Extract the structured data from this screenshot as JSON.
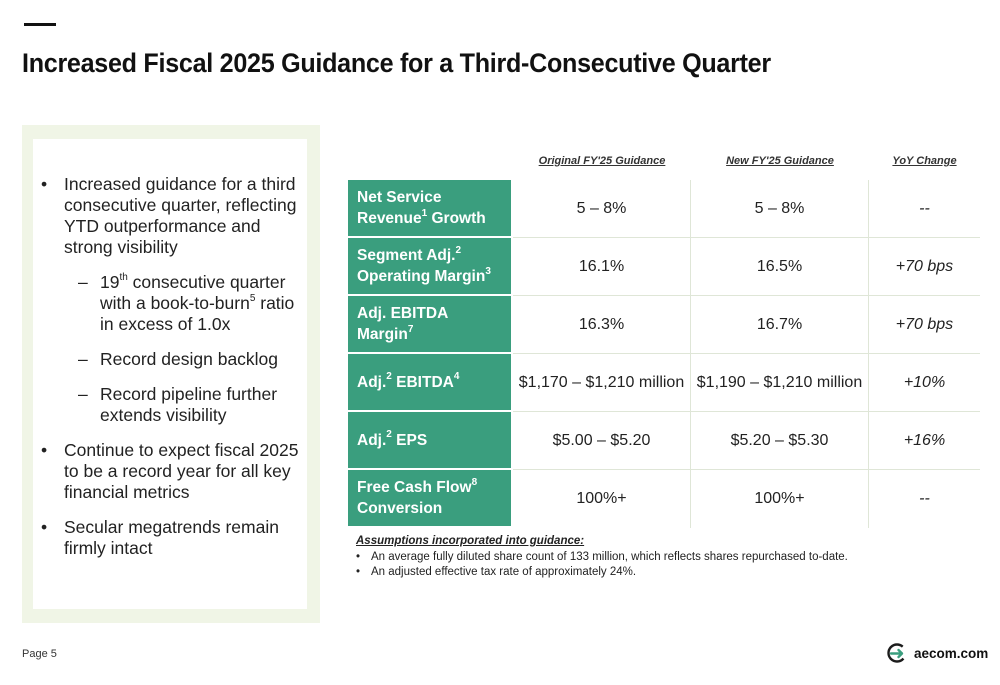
{
  "slide": {
    "title": "Increased Fiscal 2025 Guidance for a Third-Consecutive Quarter",
    "page_label": "Page 5",
    "logo_text": "aecom.com"
  },
  "left_panel": {
    "b1": "Increased guidance for a third consecutive quarter, reflecting YTD outperformance and strong visibility",
    "sub1_pre": "19",
    "sub1_sup": "th",
    "sub1_mid": " consecutive quarter with a book-to-burn",
    "sub1_sup2": "5",
    "sub1_post": " ratio in excess of 1.0x",
    "sub2": "Record design backlog",
    "sub3": "Record pipeline further extends visibility",
    "b2": "Continue to expect fiscal 2025 to be a record year for all key financial metrics",
    "b3": "Secular megatrends remain firmly intact"
  },
  "table": {
    "headers": [
      "Original FY'25 Guidance",
      "New FY'25 Guidance",
      "YoY Change"
    ],
    "rows": [
      {
        "l1": "Net Service",
        "l2": "Revenue",
        "s2": "1",
        "l2b": " Growth",
        "orig": "5 – 8%",
        "new": "5 – 8%",
        "chg": "--"
      },
      {
        "l1": "Segment Adj.",
        "s1": "2",
        "l2": "Operating Margin",
        "s2": "3",
        "orig": "16.1%",
        "new": "16.5%",
        "chg": "+70 bps"
      },
      {
        "l1": "Adj. EBITDA",
        "l2": "Margin",
        "s2": "7",
        "orig": "16.3%",
        "new": "16.7%",
        "chg": "+70 bps"
      },
      {
        "l1": "Adj.",
        "s1": "2",
        "l1b": " EBITDA",
        "s1b": "4",
        "orig": "$1,170 – $1,210 million",
        "new": "$1,190 – $1,210 million",
        "chg": "+10%"
      },
      {
        "l1": "Adj.",
        "s1": "2",
        "l1b": " EPS",
        "orig": "$5.00 – $5.20",
        "new": "$5.20 – $5.30",
        "chg": "+16%"
      },
      {
        "l1": "Free Cash Flow",
        "s1": "8",
        "l2": "Conversion",
        "orig": "100%+",
        "new": "100%+",
        "chg": "--"
      }
    ]
  },
  "assumptions": {
    "title": "Assumptions incorporated into guidance:",
    "items": [
      "An average fully diluted share count of 133 million, which reflects shares repurchased to-date.",
      "An adjusted effective tax rate of approximately 24%."
    ]
  },
  "colors": {
    "accent_green": "#3a9e7e",
    "panel_bg": "#f0f5e6"
  }
}
